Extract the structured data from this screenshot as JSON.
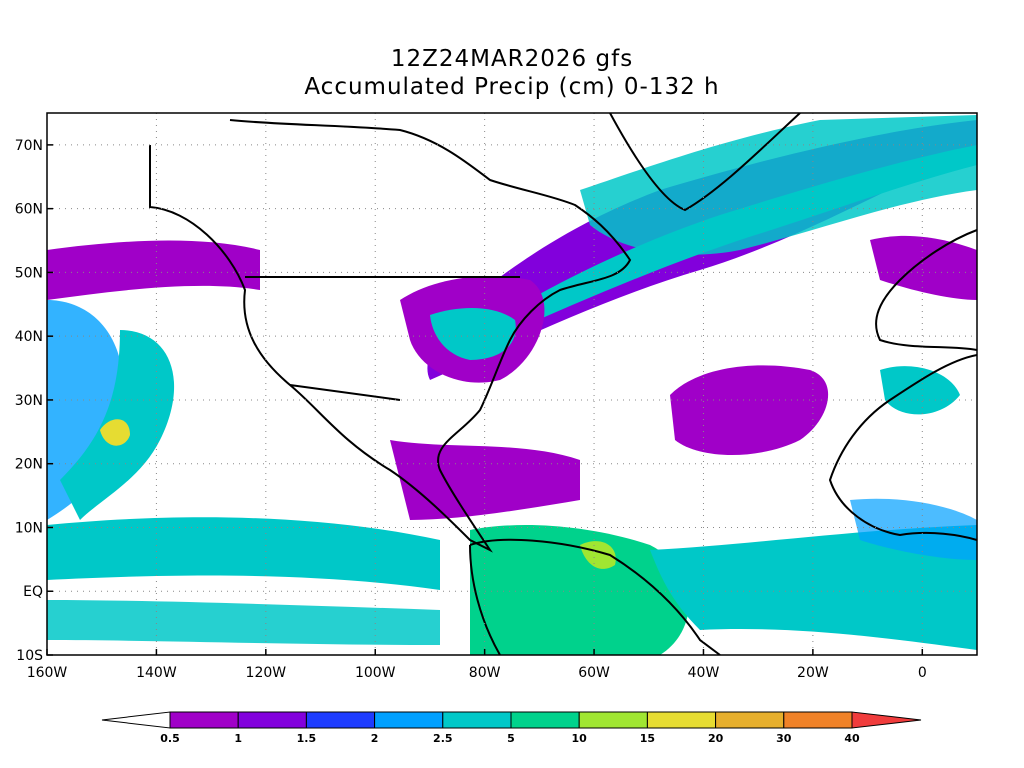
{
  "title_line1": "12Z24MAR2026 gfs",
  "title_line2": "Accumulated Precip (cm) 0-132 h",
  "map": {
    "lon_range": [
      -160,
      10
    ],
    "lat_range": [
      -10,
      75
    ],
    "lat_labels": [
      {
        "lat": 70,
        "label": "70N"
      },
      {
        "lat": 60,
        "label": "60N"
      },
      {
        "lat": 50,
        "label": "50N"
      },
      {
        "lat": 40,
        "label": "40N"
      },
      {
        "lat": 30,
        "label": "30N"
      },
      {
        "lat": 20,
        "label": "20N"
      },
      {
        "lat": 10,
        "label": "10N"
      },
      {
        "lat": 0,
        "label": "EQ"
      },
      {
        "lat": -10,
        "label": "10S"
      }
    ],
    "lon_labels": [
      {
        "lon": -160,
        "label": "160W"
      },
      {
        "lon": -140,
        "label": "140W"
      },
      {
        "lon": -120,
        "label": "120W"
      },
      {
        "lon": -100,
        "label": "100W"
      },
      {
        "lon": -80,
        "label": "80W"
      },
      {
        "lon": -60,
        "label": "60W"
      },
      {
        "lon": -40,
        "label": "40W"
      },
      {
        "lon": -20,
        "label": "20W"
      },
      {
        "lon": 0,
        "label": "0"
      }
    ],
    "grid": true
  },
  "colorbar": {
    "units": "cm",
    "below_color": "#ffffff",
    "above_color": "#f03c3c",
    "bins": [
      {
        "color": "#a000c8"
      },
      {
        "color": "#8200dc"
      },
      {
        "color": "#1e3cff"
      },
      {
        "color": "#00a0ff"
      },
      {
        "color": "#00c8c8"
      },
      {
        "color": "#00d28c"
      },
      {
        "color": "#a0e632"
      },
      {
        "color": "#e6dc32"
      },
      {
        "color": "#e6af2d"
      },
      {
        "color": "#f08228"
      }
    ],
    "thresholds": [
      "0.5",
      "1",
      "1.5",
      "2",
      "2.5",
      "5",
      "10",
      "15",
      "20",
      "30",
      "40"
    ]
  }
}
